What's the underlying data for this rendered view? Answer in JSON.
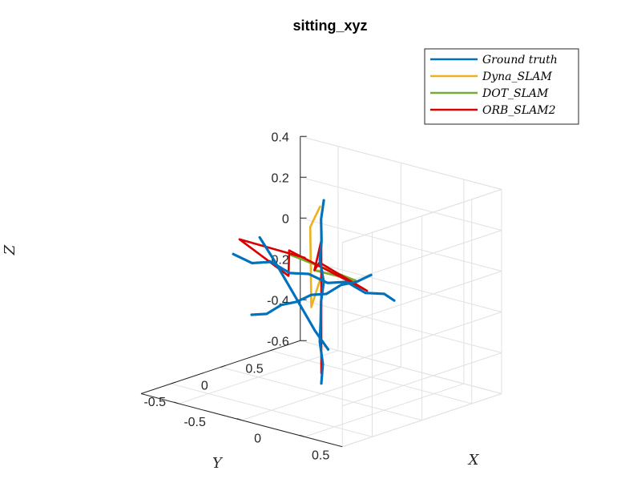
{
  "chart_data": {
    "type": "line",
    "projection": "3d",
    "title": "sitting_xyz",
    "xlabel": "X",
    "ylabel": "Y",
    "zlabel": "Z",
    "xlim": [
      -0.8,
      0.8
    ],
    "ylim": [
      -0.8,
      0.8
    ],
    "zlim": [
      -0.6,
      0.4
    ],
    "x_ticks": [
      "-0.5",
      "0",
      "0.5"
    ],
    "y_ticks": [
      "0.5",
      "0",
      "-0.5"
    ],
    "z_ticks": [
      "0.4",
      "0.2",
      "0",
      "-0.2",
      "-0.4",
      "-0.6"
    ],
    "grid": true,
    "legend_position": "top-right",
    "series": [
      {
        "name": "Ground truth",
        "color": "#0072BD",
        "dotted": true,
        "segments": [
          [
            [
              0.0,
              -0.7,
              -0.1
            ],
            [
              0.0,
              -0.55,
              -0.12
            ],
            [
              0.0,
              -0.4,
              -0.1
            ],
            [
              0.0,
              -0.25,
              -0.11
            ],
            [
              0.0,
              -0.1,
              -0.1
            ],
            [
              0.0,
              0.05,
              -0.12
            ],
            [
              0.0,
              0.2,
              -0.1
            ],
            [
              0.0,
              0.35,
              -0.11
            ],
            [
              0.0,
              0.5,
              -0.1
            ]
          ],
          [
            [
              -0.7,
              0.0,
              -0.03
            ],
            [
              -0.55,
              0.0,
              -0.05
            ],
            [
              -0.4,
              0.0,
              -0.02
            ],
            [
              -0.25,
              0.0,
              -0.05
            ],
            [
              -0.1,
              0.0,
              -0.03
            ],
            [
              0.05,
              0.0,
              -0.05
            ],
            [
              0.2,
              0.0,
              -0.02
            ],
            [
              0.35,
              0.0,
              -0.05
            ],
            [
              0.5,
              0.0,
              -0.03
            ],
            [
              0.58,
              0.0,
              -0.05
            ]
          ],
          [
            [
              0.0,
              0.0,
              -0.55
            ],
            [
              0.02,
              -0.01,
              -0.45
            ],
            [
              -0.02,
              0.01,
              -0.35
            ],
            [
              0.01,
              -0.02,
              -0.25
            ],
            [
              -0.01,
              0.01,
              -0.15
            ],
            [
              0.02,
              0.0,
              -0.05
            ],
            [
              -0.02,
              0.01,
              0.05
            ],
            [
              0.01,
              -0.01,
              0.15
            ],
            [
              -0.01,
              0.01,
              0.25
            ],
            [
              0.02,
              0.0,
              0.35
            ]
          ],
          [
            [
              -0.45,
              -0.05,
              0.1
            ],
            [
              -0.35,
              -0.03,
              0.0
            ],
            [
              -0.25,
              -0.02,
              -0.1
            ],
            [
              -0.15,
              -0.01,
              -0.2
            ],
            [
              -0.05,
              0.0,
              -0.3
            ],
            [
              0.05,
              0.01,
              -0.38
            ]
          ]
        ]
      },
      {
        "name": "Dyna_SLAM",
        "color": "#EDB120",
        "dotted": false,
        "segments": [
          [
            [
              -0.45,
              0.5,
              -0.15
            ],
            [
              0.55,
              -0.35,
              0.1
            ],
            [
              0.2,
              -0.55,
              0.2
            ]
          ],
          [
            [
              -0.45,
              0.5,
              -0.15
            ],
            [
              -0.32,
              0.42,
              -0.12
            ],
            [
              -0.38,
              0.38,
              -0.3
            ],
            [
              -0.42,
              0.42,
              0.08
            ],
            [
              -0.05,
              0.05,
              0.3
            ]
          ]
        ]
      },
      {
        "name": "DOT_SLAM",
        "color": "#77AC30",
        "dotted": false,
        "segments": [
          [
            [
              -0.45,
              0.5,
              -0.15
            ],
            [
              0.55,
              -0.35,
              0.1
            ],
            [
              0.18,
              -0.55,
              0.2
            ]
          ]
        ]
      },
      {
        "name": "ORB_SLAM2",
        "color": "#D90000",
        "dotted": false,
        "segments": [
          [
            [
              0.0,
              0.0,
              0.2
            ],
            [
              0.0,
              0.0,
              -0.5
            ],
            [
              0.0,
              0.0,
              0.15
            ],
            [
              -0.45,
              0.5,
              -0.15
            ],
            [
              -0.45,
              0.55,
              -0.12
            ],
            [
              0.6,
              -0.3,
              0.05
            ],
            [
              0.18,
              -0.55,
              0.22
            ],
            [
              -0.3,
              0.05,
              -0.08
            ],
            [
              -0.65,
              0.0,
              0.05
            ],
            [
              -0.25,
              0.15,
              0.0
            ]
          ]
        ]
      }
    ]
  }
}
